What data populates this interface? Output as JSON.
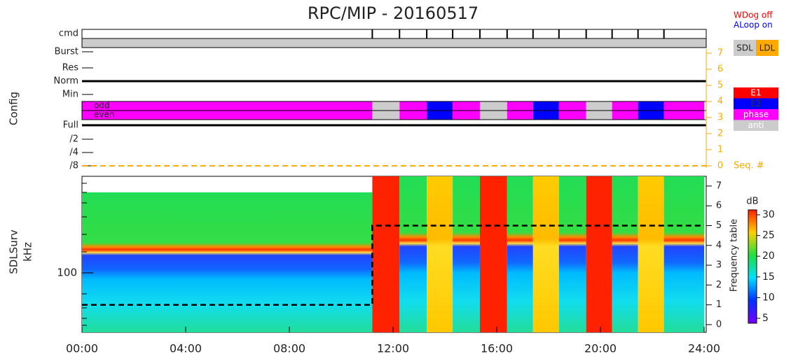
{
  "title": "RPC/MIP - 20160517",
  "status": [
    "WDog off",
    "ALoop on"
  ],
  "lf_modes": [
    "SDL",
    "LDL"
  ],
  "phase_legend": [
    "E1",
    "E2",
    "phase",
    "anti"
  ],
  "cmd_label": "cmd",
  "config_label": "Config",
  "mode_labels": [
    "Burst",
    "Res",
    "Norm",
    "Min"
  ],
  "parity_labels": [
    "odd",
    "even"
  ],
  "rate_labels": [
    "Full",
    "/2",
    "/4",
    "/8"
  ],
  "seq_label": "Seq. #",
  "seq_ticks": [
    0,
    1,
    2,
    3,
    4,
    5,
    6,
    7
  ],
  "cmd_times": [
    11.2,
    12.25,
    13.3,
    14.3,
    15.35,
    16.4,
    17.4,
    18.4,
    19.45,
    20.45,
    21.45,
    22.45
  ],
  "phase_segments": [
    {
      "start": 0,
      "end": 11.2,
      "phase": 2
    },
    {
      "start": 11.2,
      "end": 12.25,
      "phase": 3
    },
    {
      "start": 12.25,
      "end": 13.3,
      "phase": 2
    },
    {
      "start": 13.3,
      "end": 14.3,
      "phase": 1
    },
    {
      "start": 14.3,
      "end": 15.35,
      "phase": 2
    },
    {
      "start": 15.35,
      "end": 16.4,
      "phase": 3
    },
    {
      "start": 16.4,
      "end": 17.4,
      "phase": 2
    },
    {
      "start": 17.4,
      "end": 18.4,
      "phase": 1
    },
    {
      "start": 18.4,
      "end": 19.45,
      "phase": 2
    },
    {
      "start": 19.45,
      "end": 20.45,
      "phase": 3
    },
    {
      "start": 20.45,
      "end": 21.45,
      "phase": 2
    },
    {
      "start": 21.45,
      "end": 22.45,
      "phase": 1
    },
    {
      "start": 22.45,
      "end": 24,
      "phase": 2
    }
  ],
  "spectrogram": {
    "ylabel": [
      "SDLSurv",
      "kHz"
    ],
    "ytick": "100",
    "ftable_label": "Frequency table",
    "ftable_ticks": [
      0,
      1,
      2,
      3,
      4,
      5,
      6,
      7
    ],
    "ftable": {
      "x": [
        0,
        11.2,
        11.2,
        24
      ],
      "values": [
        1,
        1,
        5,
        5
      ]
    },
    "colorbar": {
      "label": "dB",
      "ticks": [
        5,
        10,
        15,
        20,
        25,
        30
      ]
    }
  },
  "xaxis": {
    "xlim": [
      0,
      24
    ],
    "ticks": [
      {
        "value": 0,
        "label": "00:00"
      },
      {
        "value": 4,
        "label": "04:00"
      },
      {
        "value": 8,
        "label": "08:00"
      },
      {
        "value": 12,
        "label": "12:00"
      },
      {
        "value": 16,
        "label": "16:00"
      },
      {
        "value": 20,
        "label": "20:00"
      },
      {
        "value": 24,
        "label": "24:00"
      }
    ]
  }
}
